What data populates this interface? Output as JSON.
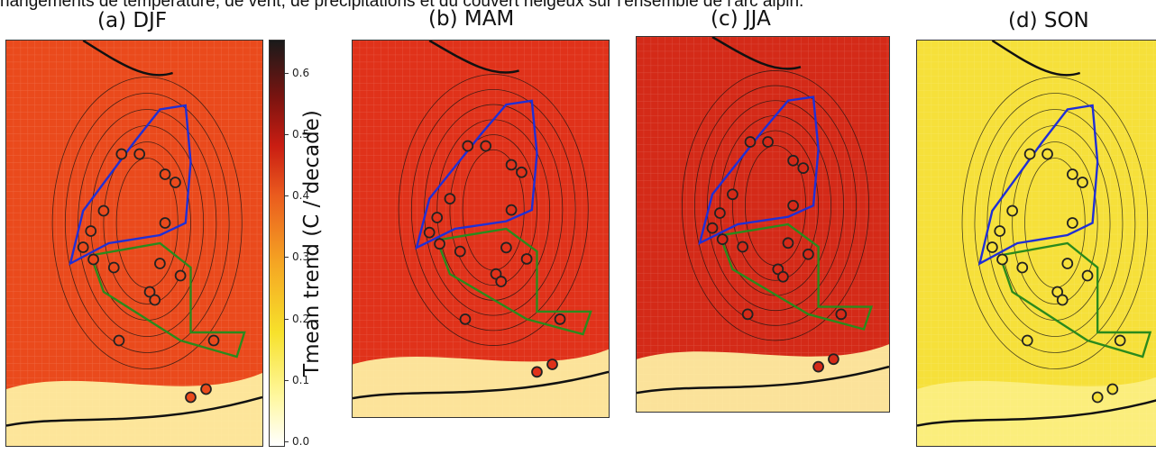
{
  "caption": "hangements de température, de vent, de précipitations et du couvert neigeux sur l'ensemble de l'arc alpin.",
  "chart_data": {
    "type": "heatmap",
    "variable_label": "Tmean trend (C / decade)",
    "colorbar": {
      "ticks": [
        "0.0",
        "0.1",
        "0.2",
        "0.3",
        "0.4",
        "0.5",
        "0.6"
      ],
      "range": [
        0.0,
        0.65
      ],
      "colormap": [
        "#ffffff",
        "#fff8a0",
        "#f7e12b",
        "#f5a623",
        "#ea5a1e",
        "#c91d12",
        "#7a1410",
        "#1a1a1a"
      ]
    },
    "panels": [
      {
        "title": "(a) DJF",
        "season": "DJF",
        "mean_trend": 0.33,
        "background_color": "#ea4a1c"
      },
      {
        "title": "(b) MAM",
        "season": "MAM",
        "mean_trend": 0.43,
        "background_color": "#e0321a"
      },
      {
        "title": "(c) JJA",
        "season": "JJA",
        "mean_trend": 0.47,
        "background_color": "#d42a18"
      },
      {
        "title": "(d) SON",
        "season": "SON",
        "mean_trend": 0.24,
        "background_color": "#f6e03a"
      }
    ],
    "boundary_colors": {
      "region_north": "#1f2fd6",
      "region_south": "#2a8a1c",
      "coast": "#111111"
    }
  }
}
